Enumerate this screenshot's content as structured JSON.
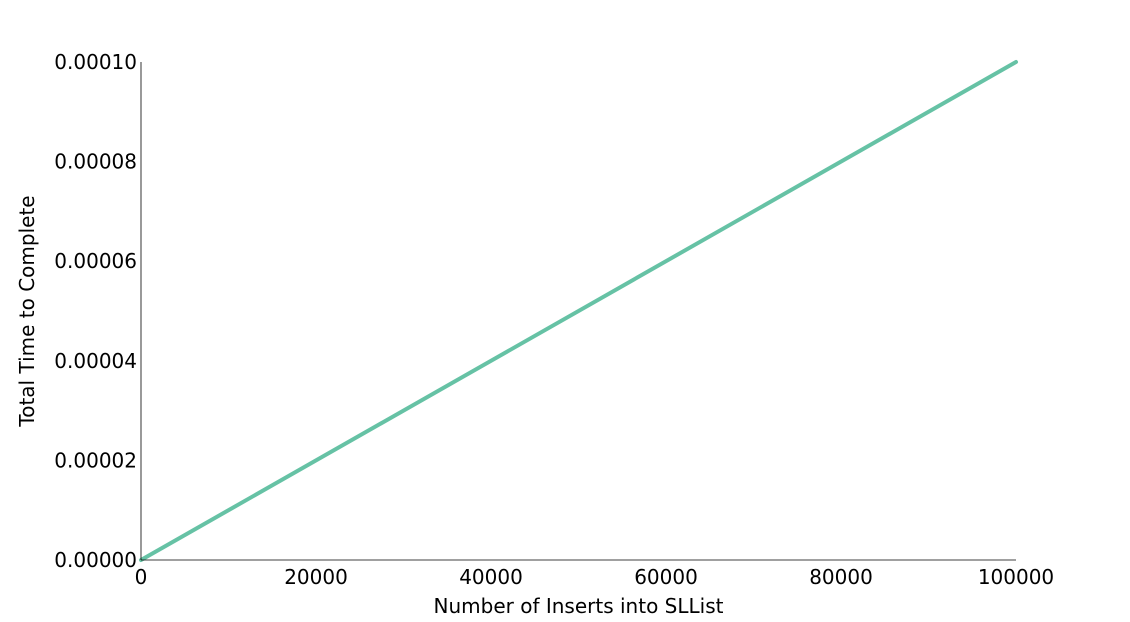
{
  "chart_data": {
    "type": "line",
    "title": "",
    "xlabel": "Number of Inserts into SLList",
    "ylabel": "Total Time to Complete",
    "xlim": [
      0,
      100000
    ],
    "ylim": [
      0,
      0.0001
    ],
    "x_ticks": [
      0,
      20000,
      40000,
      60000,
      80000,
      100000
    ],
    "x_tick_labels": [
      "0",
      "20000",
      "40000",
      "60000",
      "80000",
      "100000"
    ],
    "y_ticks": [
      0,
      2e-05,
      4e-05,
      6e-05,
      8e-05,
      0.0001
    ],
    "y_tick_labels": [
      "0.00000",
      "0.00002",
      "0.00004",
      "0.00006",
      "0.00008",
      "0.00010"
    ],
    "grid": false,
    "series": [
      {
        "color": "#66c2a5",
        "x": [
          0,
          100000
        ],
        "y": [
          0,
          0.0001
        ]
      }
    ]
  }
}
